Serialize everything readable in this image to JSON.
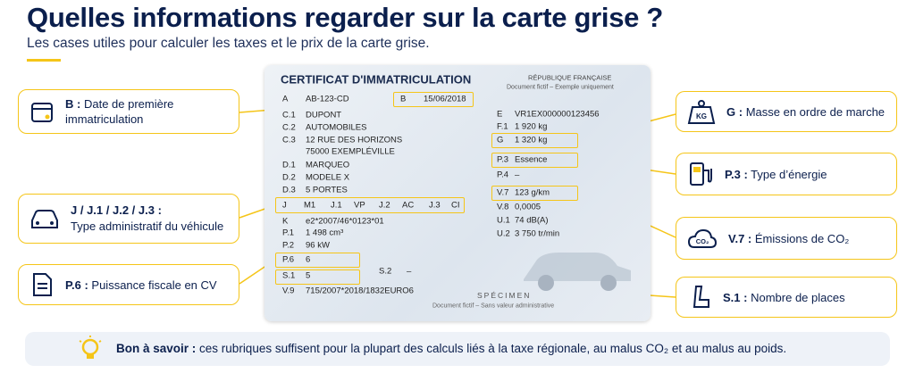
{
  "header": {
    "title": "Quelles informations regarder sur la carte grise ?",
    "subtitle": "Les cases utiles pour calculer les taxes et le prix de la carte grise."
  },
  "card": {
    "title": "CERTIFICAT D'IMMATRICULATION",
    "country": "RÉPUBLIQUE FRANÇAISE",
    "note": "Document fictif – Exemple uniquement",
    "left_fields": [
      {
        "code": "A",
        "value": "AB-123-CD"
      },
      {
        "code": "C.1",
        "value": "DUPONT"
      },
      {
        "code": "C.2",
        "value": "AUTOMOBILES"
      },
      {
        "code": "C.3",
        "value": "12 RUE DES HORIZONS",
        "value_line_2": "75000 EXEMPLÉVILLE"
      },
      {
        "code": "D.1",
        "value": "MARQUEO"
      },
      {
        "code": "D.2",
        "value": "MODELE X"
      },
      {
        "code": "D.3",
        "value": "5 PORTES"
      },
      {
        "code": "K",
        "value": "e2*2007/46*0123*01"
      },
      {
        "code": "P.1",
        "value": "1 498 cm³"
      },
      {
        "code": "P.2",
        "value": "96 kW"
      },
      {
        "code": "P.6",
        "value": "6"
      },
      {
        "code": "S.1",
        "value": "5"
      },
      {
        "code": "V.9",
        "value": "715/2007*2018/1832EURO6"
      }
    ],
    "b_field": {
      "code": "B",
      "value": "15/06/2018"
    },
    "s2_field": {
      "code": "S.2",
      "value": "–"
    },
    "j_row": [
      {
        "code": "J",
        "value": "M1"
      },
      {
        "code": "J.1",
        "value": "VP"
      },
      {
        "code": "J.2",
        "value": "AC"
      },
      {
        "code": "J.3",
        "value": "CI"
      }
    ],
    "right_fields": [
      {
        "code": "E",
        "value": "VR1EX000000123456"
      },
      {
        "code": "F.1",
        "value": "1 920 kg"
      },
      {
        "code": "G",
        "value": "1 320 kg"
      },
      {
        "code": "P.3",
        "value": "Essence"
      },
      {
        "code": "P.4",
        "value": "–"
      },
      {
        "code": "V.7",
        "value": "123 g/km"
      },
      {
        "code": "V.8",
        "value": "0,0005"
      },
      {
        "code": "U.1",
        "value": "74 dB(A)"
      },
      {
        "code": "U.2",
        "value": "3 750 tr/min"
      }
    ],
    "specimen": "SPÉCIMEN",
    "footer_note": "Document fictif – Sans valeur administrative"
  },
  "callouts": [
    {
      "code": "B :",
      "label": "Date de première immatriculation"
    },
    {
      "code": "J / J.1 / J.2 / J.3 :",
      "label": "Type administratif du véhicule"
    },
    {
      "code": "P.6 :",
      "label": "Puissance fiscale en CV"
    },
    {
      "code": "G :",
      "label": "Masse en ordre de marche",
      "icon": "KG"
    },
    {
      "code": "P.3 :",
      "label": "Type d’énergie"
    },
    {
      "code": "V.7 :",
      "label": "Émissions de CO₂",
      "icon": "CO₂"
    },
    {
      "code": "S.1 :",
      "label": "Nombre de places"
    }
  ],
  "tip": {
    "lead": "Bon à savoir :",
    "text": "ces rubriques suffisent pour la plupart des calculs liés à la taxe régionale, au malus CO₂ et au malus au poids."
  }
}
